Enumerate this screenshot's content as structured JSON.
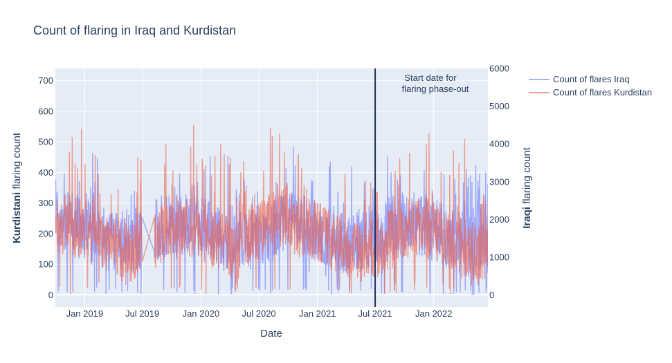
{
  "chart_data": {
    "type": "line",
    "title": "Count of flaring in Iraq and Kurdistan",
    "xlabel": "Date",
    "ylabel_left": {
      "bold": "Kurdistani",
      "rest": " flaring count"
    },
    "ylabel_right": {
      "bold": "Iraqi",
      "rest": " flaring count"
    },
    "x_range": [
      "2018-10-01",
      "2022-06-20"
    ],
    "y_left_range": [
      -40,
      740
    ],
    "y_right_range": [
      -320,
      6000
    ],
    "x_ticks": [
      {
        "date": "2019-01-01",
        "label": "Jan 2019"
      },
      {
        "date": "2019-07-01",
        "label": "Jul 2019"
      },
      {
        "date": "2020-01-01",
        "label": "Jan 2020"
      },
      {
        "date": "2020-07-01",
        "label": "Jul 2020"
      },
      {
        "date": "2021-01-01",
        "label": "Jan 2021"
      },
      {
        "date": "2021-07-01",
        "label": "Jul 2021"
      },
      {
        "date": "2022-01-01",
        "label": "Jan 2022"
      }
    ],
    "y_left_ticks": [
      "0",
      "100",
      "200",
      "300",
      "400",
      "500",
      "600",
      "700"
    ],
    "y_right_ticks": [
      "0",
      "1000",
      "2000",
      "3000",
      "4000",
      "5000",
      "6000"
    ],
    "grid": true,
    "legend_position": "right",
    "series": [
      {
        "name": "Count of flares Iraq",
        "axis": "right",
        "color": "#636efa",
        "data_note": "daily values, approx 0 to 5700, typical 1000 to 2500",
        "gap": [
          "2019-06-30",
          "2019-08-08"
        ]
      },
      {
        "name": "Count of flares Kurdistan",
        "axis": "left",
        "color": "#ef553b",
        "data_note": "daily values, approx 0 to 700, typical 100 to 300",
        "gap": [
          "2019-07-01",
          "2019-08-08"
        ]
      }
    ],
    "vline": {
      "date": "2021-07-01",
      "color": "#1f2f5a"
    },
    "annotation": {
      "line1": "Start date for",
      "line2": "flaring phase-out"
    }
  },
  "colors": {
    "plot_bg": "#e5ecf6",
    "grid": "#ffffff",
    "text": "#2a3f5f"
  }
}
